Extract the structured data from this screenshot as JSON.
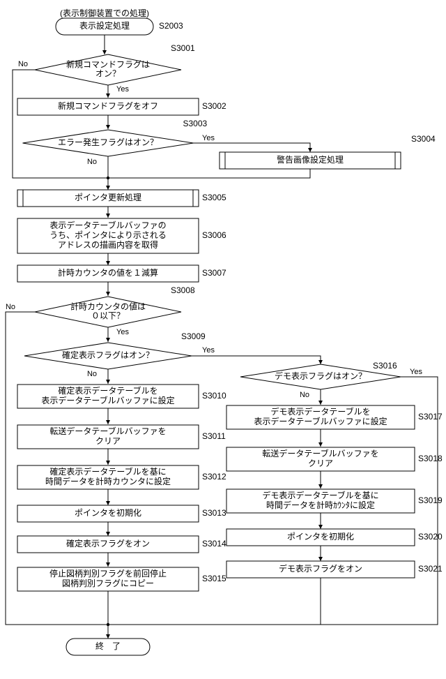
{
  "colors": {
    "bg": "#ffffff",
    "stroke": "#000000",
    "fill": "#ffffff",
    "text": "#000000"
  },
  "font_size": 12,
  "edge_font_size": 11,
  "header_note": "(表示制御装置での処理)",
  "nodes": {
    "start": {
      "label": "表示設定処理",
      "tag": "S2003"
    },
    "d1": {
      "line1": "新規コマンドフラグは",
      "line2": "オン？",
      "tag": "S3001"
    },
    "p1": {
      "label": "新規コマンドフラグをオフ",
      "tag": "S3002"
    },
    "d2": {
      "label": "エラー発生フラグはオン？",
      "tag": "S3003"
    },
    "sub1": {
      "label": "警告画像設定処理",
      "tag": "S3004"
    },
    "sub2": {
      "label": "ポインタ更新処理",
      "tag": "S3005"
    },
    "p2": {
      "line1": "表示データテーブルバッファの",
      "line2": "うち、ポインタにより示される",
      "line3": "アドレスの描画内容を取得",
      "tag": "S3006"
    },
    "p3": {
      "label": "計時カウンタの値を１減算",
      "tag": "S3007"
    },
    "d3": {
      "line1": "計時カウンタの値は",
      "line2": "０以下？",
      "tag": "S3008"
    },
    "d4": {
      "label": "確定表示フラグはオン？",
      "tag": "S3009"
    },
    "p4": {
      "line1": "確定表示データテーブルを",
      "line2": "表示データテーブルバッファに設定",
      "tag": "S3010"
    },
    "p5": {
      "line1": "転送データテーブルバッファを",
      "line2": "クリア",
      "tag": "S3011"
    },
    "p6": {
      "line1": "確定表示データテーブルを基に",
      "line2": "時間データを計時カウンタに設定",
      "tag": "S3012"
    },
    "p7": {
      "label": "ポインタを初期化",
      "tag": "S3013"
    },
    "p8": {
      "label": "確定表示フラグをオン",
      "tag": "S3014"
    },
    "p9": {
      "line1": "停止図柄判別フラグを前回停止",
      "line2": "図柄判別フラグにコピー",
      "tag": "S3015"
    },
    "d5": {
      "label": "デモ表示フラグはオン？",
      "tag": "S3016"
    },
    "p10": {
      "line1": "デモ表示データテーブルを",
      "line2": "表示データテーブルバッファに設定",
      "tag": "S3017"
    },
    "p11": {
      "line1": "転送データテーブルバッファを",
      "line2": "クリア",
      "tag": "S3018"
    },
    "p12": {
      "line1": "デモ表示データテーブルを基に",
      "line2": "時間データを計時ｶｳﾝﾀに設定",
      "tag": "S3019"
    },
    "p13": {
      "label": "ポインタを初期化",
      "tag": "S3020"
    },
    "p14": {
      "label": "デモ表示フラグをオン",
      "tag": "S3021"
    },
    "end": {
      "label": "終　了"
    }
  },
  "edges": {
    "yes": "Yes",
    "no": "No"
  }
}
